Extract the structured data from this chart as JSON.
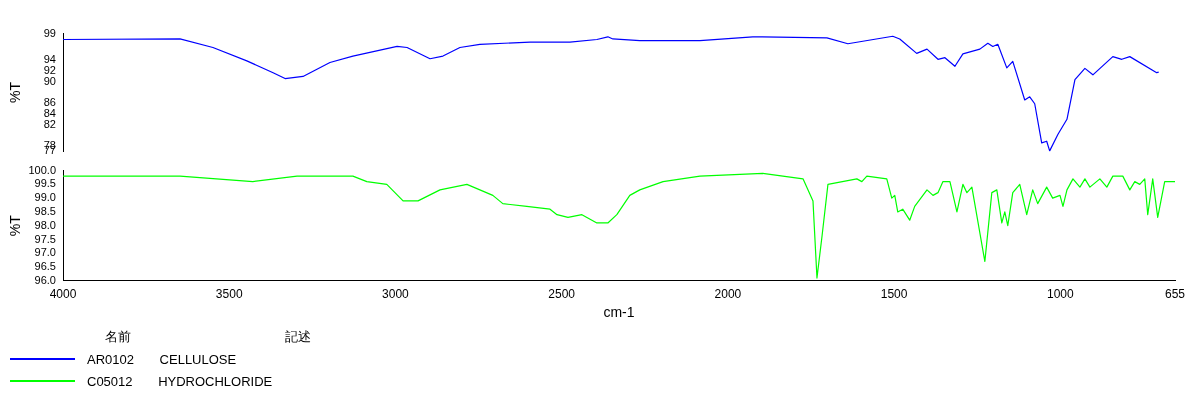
{
  "chart_data": [
    {
      "type": "line",
      "ylabel": "%T",
      "xlim": [
        4000,
        655
      ],
      "xticks": [
        4000,
        3500,
        3000,
        2500,
        2000,
        1500,
        1000,
        655
      ],
      "ylim": [
        77,
        99
      ],
      "yticks": [
        99,
        94,
        92,
        90,
        86,
        84,
        82,
        78,
        77
      ],
      "tick_labels": "y",
      "grid": false,
      "marker": "none",
      "legend": "bottom left",
      "series": [
        {
          "name": "AR0102 CELLULOSE",
          "color": "#0000ff",
          "x": [
            4000,
            3648,
            3549,
            3447,
            3368,
            3332,
            3278,
            3197,
            3128,
            2995,
            2965,
            2896,
            2857,
            2806,
            2746,
            2595,
            2475,
            2394,
            2361,
            2346,
            2265,
            2084,
            1925,
            1702,
            1639,
            1504,
            1483,
            1432,
            1401,
            1368,
            1347,
            1317,
            1293,
            1242,
            1218,
            1203,
            1188,
            1161,
            1143,
            1107,
            1092,
            1077,
            1056,
            1041,
            1032,
            1007,
            980,
            956,
            926,
            902,
            842,
            815,
            791,
            710,
            704
          ],
          "values": [
            97.9,
            98.0,
            96.4,
            93.9,
            91.7,
            90.6,
            91.0,
            93.6,
            94.8,
            96.6,
            96.4,
            94.3,
            94.8,
            96.4,
            97.0,
            97.4,
            97.4,
            97.9,
            98.4,
            98.0,
            97.7,
            97.7,
            98.4,
            98.2,
            97.1,
            98.5,
            98.0,
            95.3,
            96.1,
            94.2,
            94.5,
            92.9,
            95.2,
            96.1,
            97.2,
            96.6,
            97.0,
            92.6,
            93.8,
            86.6,
            87.2,
            85.9,
            78.6,
            78.9,
            77.1,
            80.2,
            83.0,
            90.4,
            92.5,
            91.3,
            94.7,
            94.2,
            94.7,
            91.7,
            91.8
          ]
        }
      ]
    },
    {
      "type": "line",
      "ylabel": "%T",
      "xlabel": "cm-1",
      "xlim": [
        4000,
        655
      ],
      "xticks": [
        4000,
        3500,
        3000,
        2500,
        2000,
        1500,
        1000,
        655
      ],
      "ylim": [
        96,
        100
      ],
      "yticks": [
        {
          "value": 100,
          "label": "100.0"
        },
        99.5,
        {
          "value": 99,
          "label": "99.0"
        },
        98.5,
        {
          "value": 98,
          "label": "98.0"
        },
        97.5,
        {
          "value": 97,
          "label": "97.0"
        },
        96.5,
        {
          "value": 96,
          "label": "96.0"
        }
      ],
      "grid": false,
      "marker": "none",
      "legend": "bottom left",
      "annotations": [
        "名前",
        "記述"
      ],
      "series": [
        {
          "name": "C05012 HYDROCHLORIDE",
          "color": "#00ff00",
          "x": [
            4000,
            3648,
            3429,
            3296,
            3128,
            3086,
            3026,
            2977,
            2932,
            2866,
            2785,
            2746,
            2707,
            2677,
            2605,
            2535,
            2514,
            2481,
            2439,
            2394,
            2361,
            2334,
            2295,
            2265,
            2195,
            2084,
            1895,
            1774,
            1744,
            1732,
            1717,
            1699,
            1612,
            1597,
            1582,
            1522,
            1507,
            1498,
            1489,
            1474,
            1453,
            1438,
            1401,
            1383,
            1368,
            1353,
            1332,
            1311,
            1293,
            1281,
            1266,
            1227,
            1206,
            1191,
            1176,
            1167,
            1158,
            1143,
            1122,
            1101,
            1083,
            1068,
            1041,
            1023,
            1001,
            992,
            980,
            962,
            941,
            926,
            911,
            881,
            860,
            842,
            812,
            791,
            776,
            761,
            746,
            737,
            722,
            707,
            686,
            655
          ],
          "values": [
            99.8,
            99.8,
            99.6,
            99.8,
            99.8,
            99.6,
            99.5,
            98.9,
            98.9,
            99.3,
            99.5,
            99.3,
            99.1,
            98.8,
            98.7,
            98.6,
            98.4,
            98.3,
            98.4,
            98.1,
            98.1,
            98.4,
            99.1,
            99.3,
            99.6,
            99.8,
            99.9,
            99.7,
            98.9,
            96.1,
            97.6,
            99.5,
            99.7,
            99.6,
            99.8,
            99.7,
            99.0,
            99.1,
            98.5,
            98.6,
            98.2,
            98.7,
            99.3,
            99.1,
            99.2,
            99.6,
            99.6,
            98.5,
            99.5,
            99.2,
            99.4,
            96.7,
            99.2,
            99.3,
            98.1,
            98.5,
            98.0,
            99.2,
            99.5,
            98.4,
            99.3,
            98.8,
            99.4,
            99.0,
            99.1,
            98.7,
            99.3,
            99.7,
            99.4,
            99.7,
            99.4,
            99.7,
            99.4,
            99.8,
            99.8,
            99.3,
            99.6,
            99.5,
            99.7,
            98.4,
            99.7,
            98.3,
            99.6,
            99.6
          ]
        }
      ]
    }
  ]
}
